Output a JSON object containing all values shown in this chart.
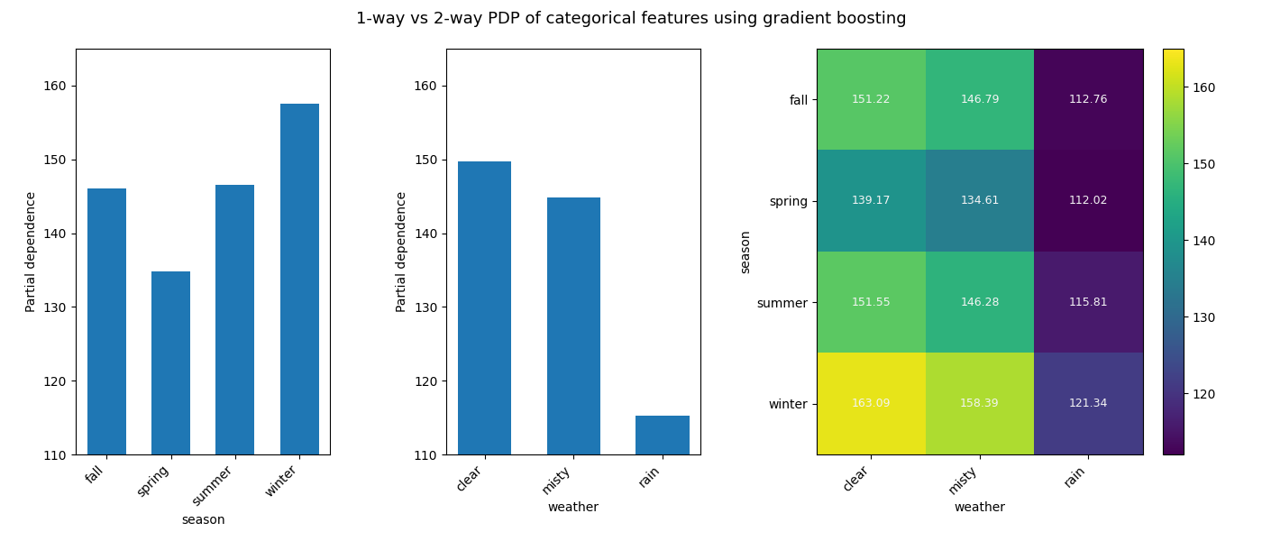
{
  "title": "1-way vs 2-way PDP of categorical features using gradient boosting",
  "bar1": {
    "categories": [
      "fall",
      "spring",
      "summer",
      "winter"
    ],
    "values": [
      146.0,
      134.8,
      146.5,
      157.5
    ],
    "xlabel": "season",
    "ylabel": "Partial dependence",
    "ylim": [
      110,
      165
    ]
  },
  "bar2": {
    "categories": [
      "clear",
      "misty",
      "rain"
    ],
    "values": [
      149.7,
      144.8,
      115.3
    ],
    "xlabel": "weather",
    "ylabel": "Partial dependence",
    "ylim": [
      110,
      165
    ]
  },
  "heatmap": {
    "data": [
      [
        151.22,
        146.79,
        112.76
      ],
      [
        139.17,
        134.61,
        112.02
      ],
      [
        151.55,
        146.28,
        115.81
      ],
      [
        163.09,
        158.39,
        121.34
      ]
    ],
    "row_labels": [
      "fall",
      "spring",
      "summer",
      "winter"
    ],
    "col_labels": [
      "clear",
      "misty",
      "rain"
    ],
    "xlabel": "weather",
    "ylabel": "season",
    "cmap": "viridis",
    "vmin": 112,
    "vmax": 165
  },
  "bar_color": "#1f77b4",
  "text_color_light": "#f5f5f5",
  "title_fontsize": 13,
  "label_fontsize": 10,
  "tick_fontsize": 10
}
